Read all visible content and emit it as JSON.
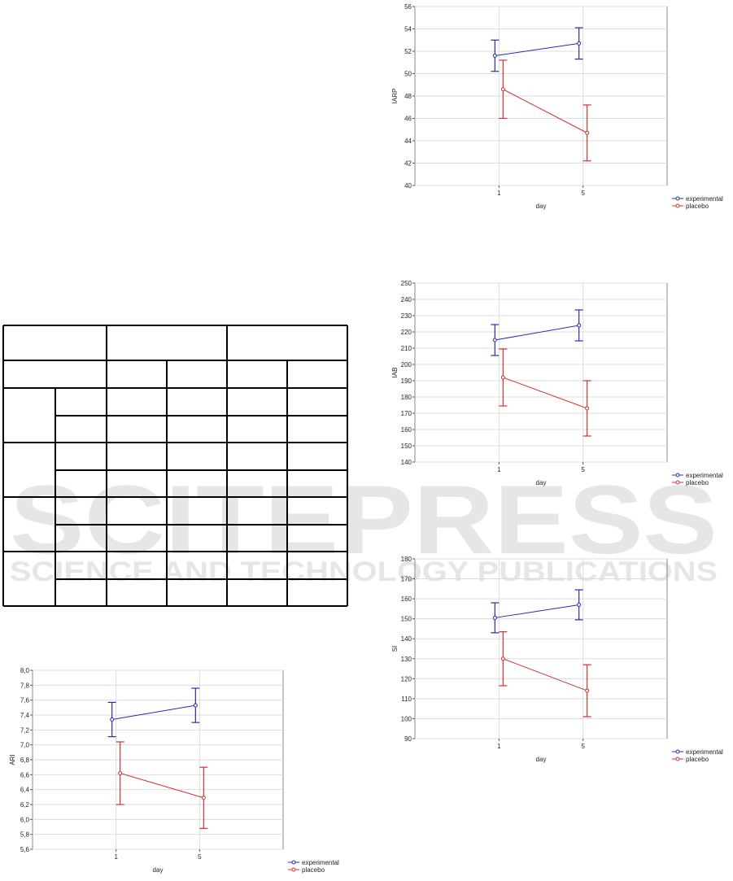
{
  "watermark": {
    "title": "SCITEPRESS",
    "subtitle": "SCIENCE AND TECHNOLOGY PUBLICATIONS"
  },
  "chart_data": [
    {
      "type": "line",
      "y_label": "IARP",
      "x_label": "day",
      "categories": [
        "1",
        "5"
      ],
      "series": [
        {
          "name": "experimental",
          "color": "#2b2bb0",
          "values": [
            51.6,
            52.7
          ],
          "errors": [
            1.4,
            1.4
          ]
        },
        {
          "name": "placebo",
          "color": "#d03030",
          "values": [
            48.6,
            44.7
          ],
          "errors": [
            2.6,
            2.5
          ]
        }
      ],
      "ylim": [
        40,
        56
      ],
      "yticks": [
        40,
        42,
        44,
        46,
        48,
        50,
        52,
        54,
        56
      ],
      "grid": true
    },
    {
      "type": "line",
      "y_label": "IAB",
      "x_label": "day",
      "categories": [
        "1",
        "5"
      ],
      "series": [
        {
          "name": "experimental",
          "color": "#2b2bb0",
          "values": [
            215,
            224
          ],
          "errors": [
            9.5,
            9.5
          ]
        },
        {
          "name": "placebo",
          "color": "#d03030",
          "values": [
            192,
            173
          ],
          "errors": [
            17.5,
            17
          ]
        }
      ],
      "ylim": [
        140,
        250
      ],
      "yticks": [
        140,
        150,
        160,
        170,
        180,
        190,
        200,
        210,
        220,
        230,
        240,
        250
      ],
      "grid": true
    },
    {
      "type": "line",
      "y_label": "SI",
      "x_label": "day",
      "categories": [
        "1",
        "5"
      ],
      "series": [
        {
          "name": "experimental",
          "color": "#2b2bb0",
          "values": [
            150.5,
            157
          ],
          "errors": [
            7.5,
            7.5
          ]
        },
        {
          "name": "placebo",
          "color": "#d03030",
          "values": [
            130,
            114
          ],
          "errors": [
            13.5,
            13
          ]
        }
      ],
      "ylim": [
        90,
        180
      ],
      "yticks": [
        90,
        100,
        110,
        120,
        130,
        140,
        150,
        160,
        170,
        180
      ],
      "grid": true
    },
    {
      "type": "line",
      "y_label": "ARI",
      "x_label": "day",
      "categories": [
        "1",
        "5"
      ],
      "series": [
        {
          "name": "experimental",
          "color": "#2b2bb0",
          "values": [
            7.34,
            7.53
          ],
          "errors": [
            0.23,
            0.23
          ]
        },
        {
          "name": "placebo",
          "color": "#d03030",
          "values": [
            6.62,
            6.29
          ],
          "errors": [
            0.42,
            0.41
          ]
        }
      ],
      "ylim": [
        5.6,
        8.0
      ],
      "yticks": [
        {
          "value": 5.6,
          "label": "5,6"
        },
        {
          "value": 5.8,
          "label": "5,8"
        },
        {
          "value": 6.0,
          "label": "6,0"
        },
        {
          "value": 6.2,
          "label": "6,2"
        },
        {
          "value": 6.4,
          "label": "6,4"
        },
        {
          "value": 6.6,
          "label": "6,6"
        },
        {
          "value": 6.8,
          "label": "6,8"
        },
        {
          "value": 7.0,
          "label": "7,0"
        },
        {
          "value": 7.2,
          "label": "7,2"
        },
        {
          "value": 7.4,
          "label": "7,4"
        },
        {
          "value": 7.6,
          "label": "7,6"
        },
        {
          "value": 7.8,
          "label": "7,8"
        },
        {
          "value": 8.0,
          "label": "8,0"
        }
      ],
      "grid": true
    }
  ]
}
